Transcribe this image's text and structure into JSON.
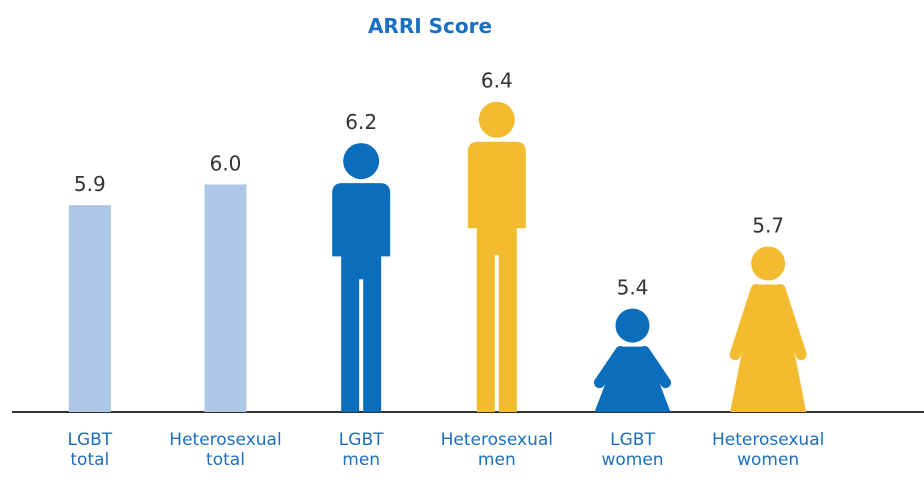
{
  "chart_data": {
    "type": "bar",
    "title": "ARRI Score",
    "categories": [
      "LGBT total",
      "Heterosexual total",
      "LGBT men",
      "Heterosexual men",
      "LGBT women",
      "Heterosexual women"
    ],
    "values": [
      5.9,
      6.0,
      6.2,
      6.4,
      5.4,
      5.7
    ],
    "value_labels": [
      "5.9",
      "6.0",
      "6.2",
      "6.4",
      "5.4",
      "5.7"
    ],
    "colors": [
      "#adc8e6",
      "#adc8e6",
      "#0a6ebd",
      "#f2bb30",
      "#0a6ebd",
      "#f2bb30"
    ],
    "marks": [
      "bar",
      "bar",
      "man",
      "man",
      "woman",
      "woman"
    ],
    "ylim": [
      4.9,
      6.5
    ]
  }
}
